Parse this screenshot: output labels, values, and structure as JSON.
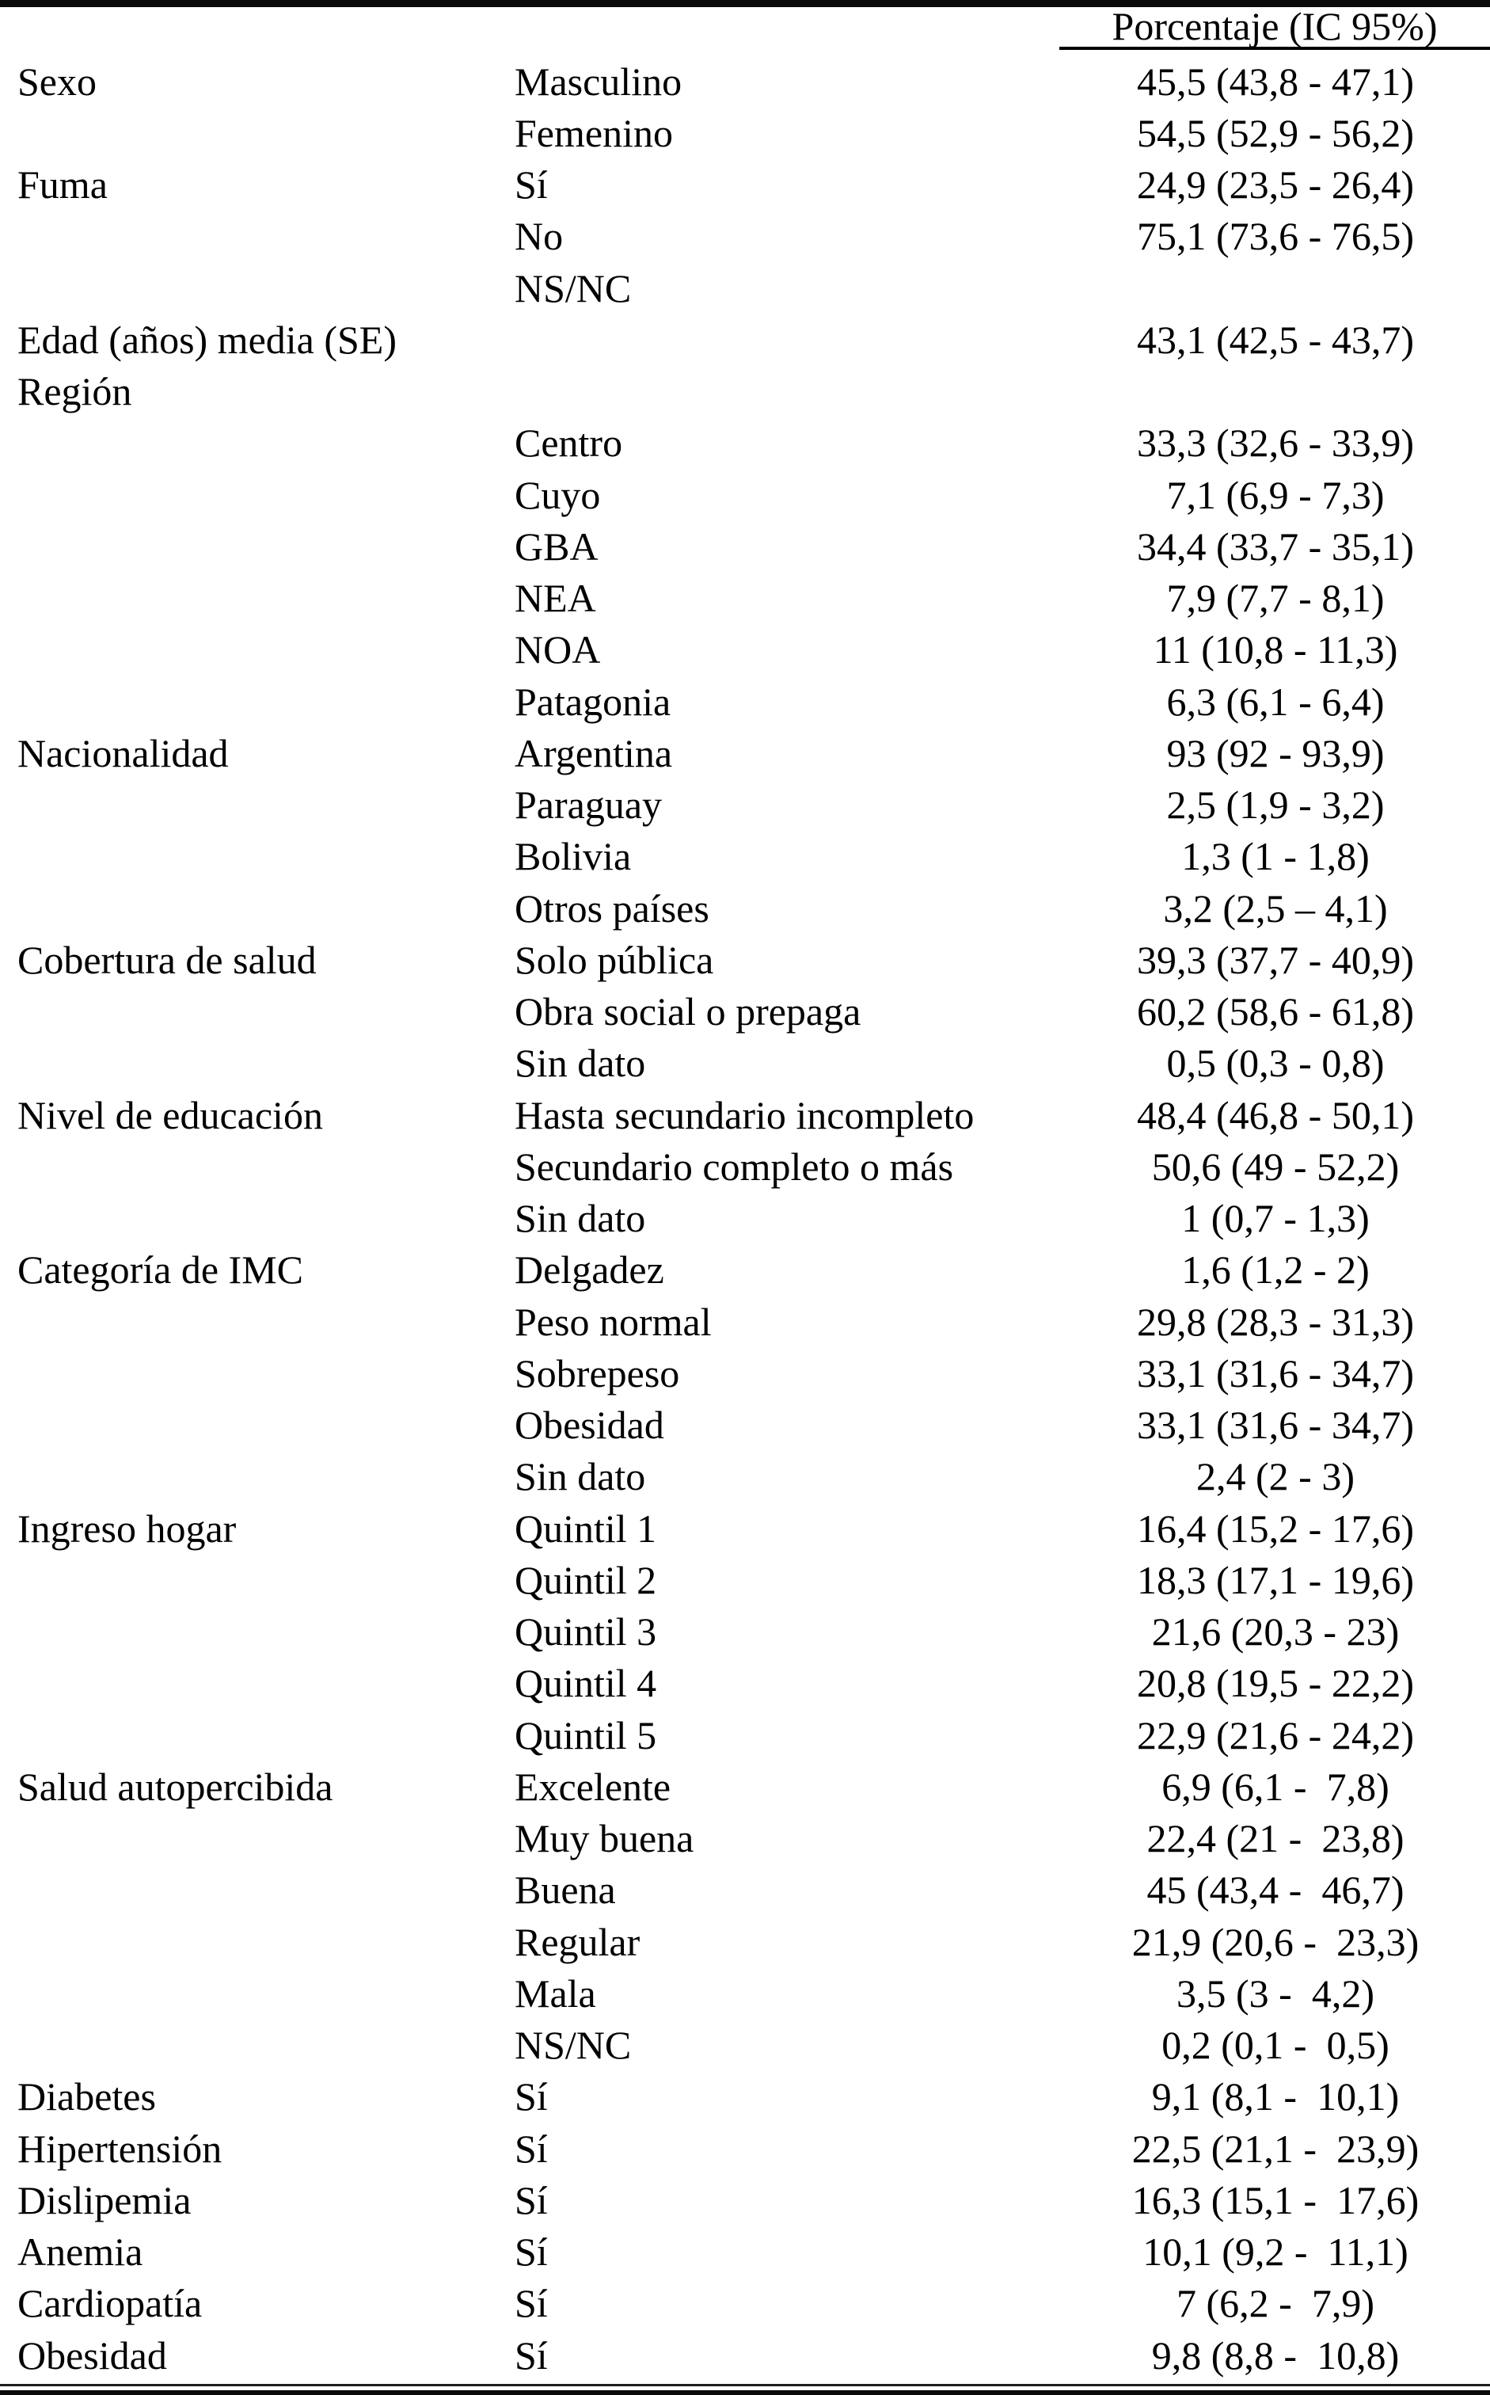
{
  "table": {
    "header": {
      "value_column": "Porcentaje (IC 95%)"
    },
    "rows": [
      {
        "category": "Sexo",
        "label": "Masculino",
        "value": "45,5 (43,8 - 47,1)"
      },
      {
        "category": "",
        "label": "Femenino",
        "value": "54,5 (52,9 - 56,2)"
      },
      {
        "category": "Fuma",
        "label": "Sí",
        "value": "24,9 (23,5 - 26,4)"
      },
      {
        "category": "",
        "label": "No",
        "value": "75,1 (73,6 - 76,5)"
      },
      {
        "category": "",
        "label": "NS/NC",
        "value": ""
      },
      {
        "category": "Edad (años) media (SE)",
        "label": "",
        "value": "43,1 (42,5 - 43,7)"
      },
      {
        "category": "Región",
        "label": "",
        "value": ""
      },
      {
        "category": "",
        "label": "Centro",
        "value": "33,3 (32,6 - 33,9)"
      },
      {
        "category": "",
        "label": "Cuyo",
        "value": "7,1 (6,9 - 7,3)"
      },
      {
        "category": "",
        "label": "GBA",
        "value": "34,4 (33,7 - 35,1)"
      },
      {
        "category": "",
        "label": "NEA",
        "value": "7,9 (7,7 - 8,1)"
      },
      {
        "category": "",
        "label": "NOA",
        "value": "11 (10,8 - 11,3)"
      },
      {
        "category": "",
        "label": "Patagonia",
        "value": "6,3 (6,1 - 6,4)"
      },
      {
        "category": "Nacionalidad",
        "label": "Argentina",
        "value": "93 (92 - 93,9)"
      },
      {
        "category": "",
        "label": "Paraguay",
        "value": "2,5 (1,9 - 3,2)"
      },
      {
        "category": "",
        "label": "Bolivia",
        "value": "1,3 (1 - 1,8)"
      },
      {
        "category": "",
        "label": "Otros países",
        "value": "3,2 (2,5 – 4,1)"
      },
      {
        "category": "Cobertura de salud",
        "label": "Solo pública",
        "value": "39,3 (37,7 - 40,9)"
      },
      {
        "category": "",
        "label": "Obra social o prepaga",
        "value": "60,2 (58,6 - 61,8)"
      },
      {
        "category": "",
        "label": "Sin dato",
        "value": "0,5 (0,3 - 0,8)"
      },
      {
        "category": "Nivel de educación",
        "label": "Hasta secundario incompleto",
        "value": "48,4 (46,8 - 50,1)"
      },
      {
        "category": "",
        "label": "Secundario completo o más",
        "value": "50,6 (49 - 52,2)"
      },
      {
        "category": "",
        "label": "Sin dato",
        "value": "1 (0,7 - 1,3)"
      },
      {
        "category": "Categoría de IMC",
        "label": "Delgadez",
        "value": "1,6 (1,2 - 2)"
      },
      {
        "category": "",
        "label": "Peso normal",
        "value": "29,8 (28,3 - 31,3)"
      },
      {
        "category": "",
        "label": "Sobrepeso",
        "value": "33,1 (31,6 - 34,7)"
      },
      {
        "category": "",
        "label": "Obesidad",
        "value": "33,1 (31,6 - 34,7)"
      },
      {
        "category": "",
        "label": "Sin dato",
        "value": "2,4 (2 - 3)"
      },
      {
        "category": "Ingreso hogar",
        "label": "Quintil 1",
        "value": "16,4 (15,2 - 17,6)"
      },
      {
        "category": "",
        "label": "Quintil 2",
        "value": "18,3 (17,1 - 19,6)"
      },
      {
        "category": "",
        "label": "Quintil 3",
        "value": "21,6 (20,3 - 23)"
      },
      {
        "category": "",
        "label": "Quintil 4",
        "value": "20,8 (19,5 - 22,2)"
      },
      {
        "category": "",
        "label": "Quintil 5",
        "value": "22,9 (21,6 - 24,2)"
      },
      {
        "category": "Salud autopercibida",
        "label": "Excelente",
        "value": "6,9 (6,1 -  7,8)"
      },
      {
        "category": "",
        "label": "Muy buena",
        "value": "22,4 (21 -  23,8)"
      },
      {
        "category": "",
        "label": "Buena",
        "value": "45 (43,4 -  46,7)"
      },
      {
        "category": "",
        "label": "Regular",
        "value": "21,9 (20,6 -  23,3)"
      },
      {
        "category": "",
        "label": "Mala",
        "value": "3,5 (3 -  4,2)"
      },
      {
        "category": "",
        "label": "NS/NC",
        "value": "0,2 (0,1 -  0,5)"
      },
      {
        "category": "Diabetes",
        "label": "Sí",
        "value": "9,1 (8,1 -  10,1)"
      },
      {
        "category": "Hipertensión",
        "label": "Sí",
        "value": "22,5 (21,1 -  23,9)"
      },
      {
        "category": "Dislipemia",
        "label": "Sí",
        "value": "16,3 (15,1 -  17,6)"
      },
      {
        "category": "Anemia",
        "label": "Sí",
        "value": "10,1 (9,2 -  11,1)"
      },
      {
        "category": "Cardiopatía",
        "label": "Sí",
        "value": "7 (6,2 -  7,9)"
      },
      {
        "category": "Obesidad",
        "label": "Sí",
        "value": "9,8 (8,8 -  10,8)"
      }
    ]
  }
}
